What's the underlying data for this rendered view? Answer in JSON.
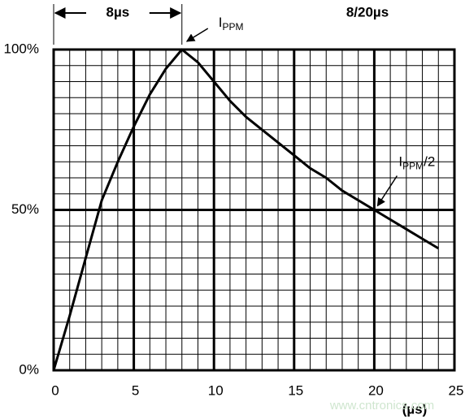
{
  "chart_data": {
    "type": "line",
    "title": "8/20µs",
    "x": [
      0,
      1,
      2,
      3,
      4,
      5,
      6,
      7,
      8,
      9,
      10,
      11,
      12,
      13,
      14,
      15,
      16,
      17,
      18,
      19,
      20,
      21,
      22,
      23,
      24
    ],
    "values": [
      0,
      17,
      35,
      53,
      65,
      76,
      86,
      94,
      100,
      96,
      90,
      84,
      79,
      75,
      71,
      67,
      63,
      60,
      56,
      53,
      50,
      47,
      44,
      41,
      38
    ],
    "color": "#000000",
    "xlim": [
      0,
      25
    ],
    "xticks": [
      0,
      5,
      10,
      15,
      20,
      25
    ],
    "ylim": [
      0,
      100
    ],
    "yticks": [
      {
        "value": 0,
        "label": "0%"
      },
      {
        "value": 50,
        "label": "50%"
      },
      {
        "value": 100,
        "label": "100%"
      }
    ],
    "minor_grid": {
      "x_step": 1,
      "y_step": 5
    },
    "x_label": "(µs)",
    "dimension": {
      "label": "8µs",
      "from": 0,
      "to": 8
    },
    "peak_label": {
      "text": "I",
      "subscript": "PPM",
      "x": 8,
      "y": 100
    },
    "half_label": {
      "text": "I",
      "subscript": "PPM",
      "suffix": "/2",
      "x": 20,
      "y": 50
    },
    "watermark": "www.cntronics.com"
  }
}
